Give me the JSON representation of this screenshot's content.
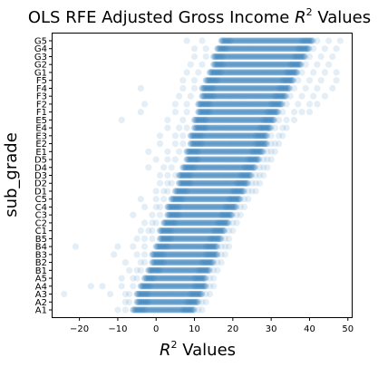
{
  "chart_data": {
    "type": "scatter",
    "title": "OLS RFE Adjusted Gross Income",
    "title_math": "R",
    "title_math_sup": "2",
    "title_suffix": "Values",
    "xlabel_math": "R",
    "xlabel_math_sup": "2",
    "xlabel_suffix": "Values",
    "ylabel": "sub_grade",
    "xlim": [
      -27,
      51
    ],
    "xticks": [
      -20,
      -10,
      0,
      10,
      20,
      30,
      40,
      50
    ],
    "xtick_labels": [
      "−20",
      "−10",
      "0",
      "10",
      "20",
      "30",
      "40",
      "50"
    ],
    "grid": false,
    "point_color": "#1f77b4",
    "point_alpha": 0.12,
    "categories": [
      "A1",
      "A2",
      "A3",
      "A4",
      "A5",
      "B1",
      "B2",
      "B3",
      "B4",
      "B5",
      "C1",
      "C2",
      "C3",
      "C4",
      "C5",
      "D1",
      "D2",
      "D3",
      "D4",
      "D5",
      "E1",
      "E2",
      "E3",
      "E4",
      "E5",
      "F1",
      "F2",
      "F3",
      "F4",
      "F5",
      "G1",
      "G2",
      "G3",
      "G4",
      "G5"
    ],
    "rows": [
      {
        "category": "A1",
        "dense": [
          -6,
          10
        ],
        "sparse": [
          -10,
          -8,
          11,
          12
        ]
      },
      {
        "category": "A2",
        "dense": [
          -5,
          11
        ],
        "sparse": [
          -8,
          -7,
          12,
          13
        ]
      },
      {
        "category": "A3",
        "dense": [
          -5,
          12
        ],
        "sparse": [
          -24,
          -12,
          -8,
          -7,
          13,
          14
        ]
      },
      {
        "category": "A4",
        "dense": [
          -4,
          13
        ],
        "sparse": [
          -17,
          -14,
          -9,
          -6,
          14,
          15
        ]
      },
      {
        "category": "A5",
        "dense": [
          -3,
          13
        ],
        "sparse": [
          -9,
          -6,
          -5,
          14,
          15
        ]
      },
      {
        "category": "B1",
        "dense": [
          -2,
          14
        ],
        "sparse": [
          -7,
          -5,
          -4,
          15,
          16
        ]
      },
      {
        "category": "B2",
        "dense": [
          -1,
          15
        ],
        "sparse": [
          -8,
          -4,
          -3,
          16,
          17
        ]
      },
      {
        "category": "B3",
        "dense": [
          -1,
          16
        ],
        "sparse": [
          -11,
          -5,
          -3,
          17,
          18
        ]
      },
      {
        "category": "B4",
        "dense": [
          0,
          16
        ],
        "sparse": [
          -21,
          -10,
          -6,
          -3,
          17,
          18,
          19
        ]
      },
      {
        "category": "B5",
        "dense": [
          1,
          17
        ],
        "sparse": [
          -5,
          -3,
          -1,
          18,
          19
        ]
      },
      {
        "category": "C1",
        "dense": [
          1,
          18
        ],
        "sparse": [
          -4,
          -2,
          -1,
          19,
          20
        ]
      },
      {
        "category": "C2",
        "dense": [
          2,
          19
        ],
        "sparse": [
          -3,
          -1,
          0,
          20,
          21
        ]
      },
      {
        "category": "C3",
        "dense": [
          3,
          20
        ],
        "sparse": [
          -6,
          -1,
          1,
          21,
          22
        ]
      },
      {
        "category": "C4",
        "dense": [
          3,
          21
        ],
        "sparse": [
          -3,
          0,
          1,
          22,
          23
        ]
      },
      {
        "category": "C5",
        "dense": [
          4,
          22
        ],
        "sparse": [
          -4,
          0,
          2,
          23,
          24
        ]
      },
      {
        "category": "D1",
        "dense": [
          5,
          23
        ],
        "sparse": [
          0,
          2,
          3,
          24,
          25,
          26
        ]
      },
      {
        "category": "D2",
        "dense": [
          6,
          24
        ],
        "sparse": [
          1,
          3,
          4,
          25,
          26,
          27
        ]
      },
      {
        "category": "D3",
        "dense": [
          6,
          25
        ],
        "sparse": [
          1,
          3,
          5,
          26,
          27,
          28
        ]
      },
      {
        "category": "D4",
        "dense": [
          7,
          26
        ],
        "sparse": [
          -2,
          2,
          4,
          27,
          28,
          29
        ]
      },
      {
        "category": "D5",
        "dense": [
          8,
          27
        ],
        "sparse": [
          0,
          3,
          5,
          28,
          29,
          30
        ]
      },
      {
        "category": "E1",
        "dense": [
          8,
          28
        ],
        "sparse": [
          -2,
          3,
          6,
          29,
          30,
          31
        ]
      },
      {
        "category": "E2",
        "dense": [
          9,
          29
        ],
        "sparse": [
          1,
          5,
          7,
          30,
          31,
          32
        ]
      },
      {
        "category": "E3",
        "dense": [
          9,
          29
        ],
        "sparse": [
          1,
          5,
          7,
          30,
          32,
          33
        ]
      },
      {
        "category": "E4",
        "dense": [
          10,
          30
        ],
        "sparse": [
          3,
          6,
          8,
          31,
          33,
          34
        ]
      },
      {
        "category": "E5",
        "dense": [
          10,
          31
        ],
        "sparse": [
          -9,
          3,
          7,
          32,
          34,
          36
        ]
      },
      {
        "category": "F1",
        "dense": [
          11,
          32
        ],
        "sparse": [
          -4,
          5,
          8,
          33,
          36,
          38,
          40
        ]
      },
      {
        "category": "F2",
        "dense": [
          11,
          33
        ],
        "sparse": [
          -3,
          5,
          8,
          34,
          37,
          40,
          42
        ]
      },
      {
        "category": "F3",
        "dense": [
          12,
          34
        ],
        "sparse": [
          6,
          9,
          35,
          38,
          41,
          44
        ]
      },
      {
        "category": "F4",
        "dense": [
          12,
          35
        ],
        "sparse": [
          -4,
          7,
          10,
          36,
          39,
          42,
          46
        ]
      },
      {
        "category": "F5",
        "dense": [
          13,
          36
        ],
        "sparse": [
          7,
          10,
          37,
          40,
          43,
          47
        ]
      },
      {
        "category": "G1",
        "dense": [
          14,
          37
        ],
        "sparse": [
          8,
          11,
          38,
          41,
          44,
          47
        ]
      },
      {
        "category": "G2",
        "dense": [
          15,
          38
        ],
        "sparse": [
          9,
          12,
          39,
          42,
          45
        ]
      },
      {
        "category": "G3",
        "dense": [
          15,
          39
        ],
        "sparse": [
          10,
          13,
          40,
          43,
          46
        ]
      },
      {
        "category": "G4",
        "dense": [
          16,
          40
        ],
        "sparse": [
          10,
          13,
          41,
          44,
          47
        ]
      },
      {
        "category": "G5",
        "dense": [
          17,
          41
        ],
        "sparse": [
          8,
          12,
          42,
          45,
          48
        ]
      }
    ]
  }
}
